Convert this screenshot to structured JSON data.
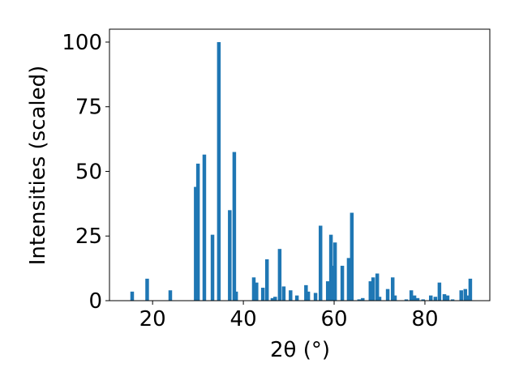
{
  "chart_data": {
    "type": "bar",
    "x_label": "2θ (°)",
    "y_label": "Intensities (scaled)",
    "color": "#1f77b4",
    "x": [
      15.5,
      18.8,
      23.9,
      29.5,
      30.0,
      31.4,
      33.2,
      34.6,
      37.0,
      38.0,
      38.4,
      42.3,
      42.9,
      44.3,
      45.2,
      46.4,
      47.0,
      48.0,
      48.9,
      50.4,
      51.8,
      53.8,
      54.3,
      55.9,
      57.0,
      58.6,
      59.3,
      59.6,
      60.2,
      61.8,
      63.2,
      63.9,
      65.5,
      66.3,
      68.0,
      68.6,
      69.5,
      70.0,
      71.8,
      72.9,
      73.4,
      75.9,
      77.0,
      77.7,
      78.4,
      79.6,
      81.3,
      82.3,
      83.2,
      84.3,
      85.0,
      86.1,
      88.0,
      88.9,
      89.5,
      90.0
    ],
    "values": [
      3.5,
      8.5,
      4,
      44,
      53,
      56.5,
      25.5,
      100,
      35,
      57.5,
      3.5,
      9,
      7,
      5,
      16,
      1,
      1.5,
      20,
      5.5,
      4,
      2,
      6,
      3.5,
      3,
      29,
      7.5,
      25.5,
      13.5,
      22.5,
      13.5,
      16.5,
      34,
      0.5,
      1,
      7.5,
      9,
      10.5,
      1.5,
      4.5,
      9,
      2,
      0.5,
      4,
      2,
      1,
      0.5,
      2,
      1.5,
      7,
      2.5,
      2,
      0.5,
      4,
      4.5,
      2,
      8.5
    ],
    "xlim": [
      10.5,
      94.3
    ],
    "ylim": [
      0,
      105
    ],
    "xticks": [
      20,
      40,
      60,
      80
    ],
    "yticks": [
      0,
      25,
      50,
      75,
      100
    ]
  }
}
